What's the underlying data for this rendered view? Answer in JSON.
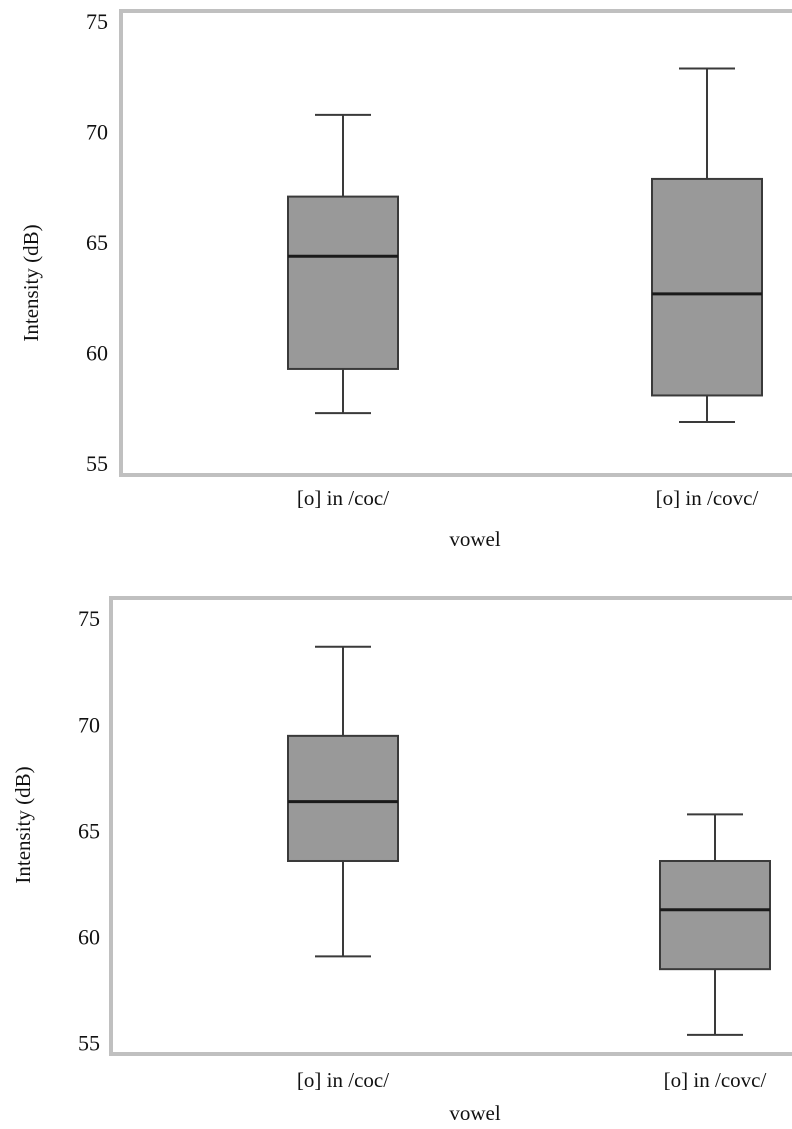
{
  "chart_data": [
    {
      "type": "boxplot",
      "xlabel": "vowel",
      "ylabel": "Intensity (dB)",
      "ylim": [
        54.5,
        75.5
      ],
      "yticks": [
        55,
        60,
        65,
        70,
        75
      ],
      "categories": [
        "[o] in /coc/",
        "[o] in /covc/"
      ],
      "boxes": [
        {
          "category": "[o] in /coc/",
          "min": 57.3,
          "q1": 59.3,
          "median": 64.4,
          "q3": 67.1,
          "max": 70.8
        },
        {
          "category": "[o] in /covc/",
          "min": 56.9,
          "q1": 58.1,
          "median": 62.7,
          "q3": 67.9,
          "max": 72.9
        }
      ]
    },
    {
      "type": "boxplot",
      "xlabel": "vowel",
      "ylabel": "Intensity (dB)",
      "ylim": [
        54.5,
        76.0
      ],
      "yticks": [
        55,
        60,
        65,
        70,
        75
      ],
      "categories": [
        "[o] in /coc/",
        "[o] in /covc/"
      ],
      "boxes": [
        {
          "category": "[o] in /coc/",
          "min": 59.1,
          "q1": 63.6,
          "median": 66.4,
          "q3": 69.5,
          "max": 73.7
        },
        {
          "category": "[o] in /covc/",
          "min": 55.4,
          "q1": 58.5,
          "median": 61.3,
          "q3": 63.6,
          "max": 65.8
        }
      ]
    }
  ]
}
